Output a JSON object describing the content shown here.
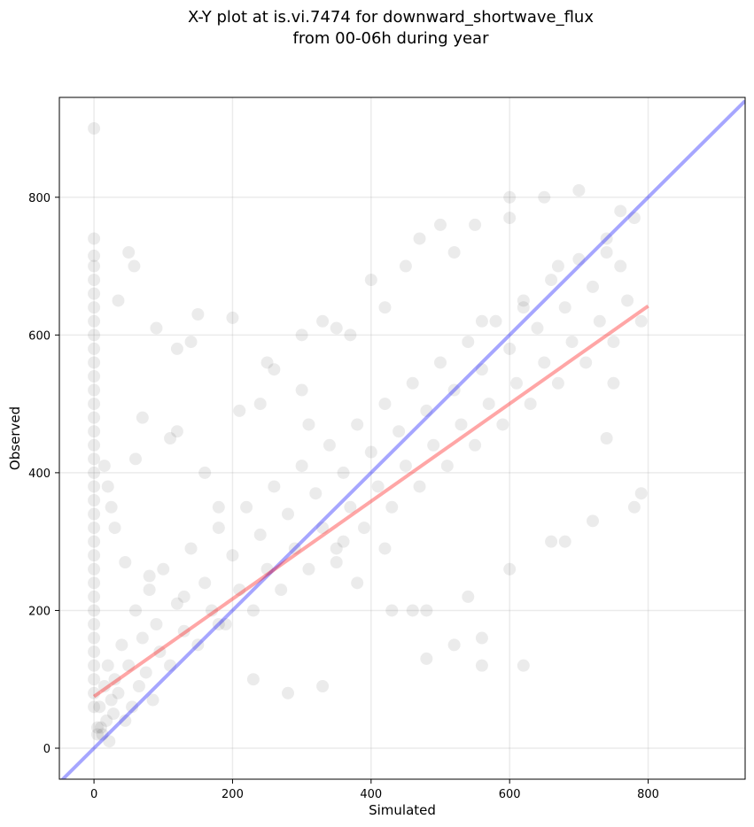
{
  "chart_data": {
    "type": "scatter",
    "title_line1": "X-Y plot at is.vi.7474 for downward_shortwave_flux",
    "title_line2": "from 00-06h during year",
    "xlabel": "Simulated",
    "ylabel": "Observed",
    "xlim": [
      -50,
      940
    ],
    "ylim": [
      -45,
      945
    ],
    "xticks": [
      0,
      200,
      400,
      600,
      800
    ],
    "yticks": [
      0,
      200,
      400,
      600,
      800
    ],
    "grid": true,
    "point_color": "#000000",
    "point_alpha": 0.08,
    "one_to_one_line": {
      "x": [
        -50,
        940
      ],
      "y": [
        -50,
        940
      ],
      "color": "#0000ff",
      "alpha": 0.35
    },
    "fit_line": {
      "x": [
        0,
        800
      ],
      "y": [
        75,
        642
      ],
      "color": "#ff0000",
      "alpha": 0.35
    },
    "series": [
      {
        "points_x": [
          0,
          0,
          0,
          0,
          0,
          0,
          0,
          0,
          0,
          0,
          0,
          0,
          0,
          0,
          0,
          0,
          0,
          0,
          0,
          0,
          0,
          0,
          0,
          0,
          0,
          0,
          0,
          0,
          0,
          0,
          0,
          0,
          0,
          0,
          0,
          0,
          5,
          8,
          12,
          15,
          18,
          20,
          22,
          25,
          28,
          30,
          35,
          40,
          45,
          50,
          55,
          60,
          65,
          70,
          75,
          80,
          85,
          90,
          95,
          100,
          110,
          120,
          130,
          140,
          150,
          160,
          170,
          180,
          190,
          200,
          210,
          220,
          230,
          240,
          250,
          260,
          270,
          280,
          290,
          300,
          310,
          320,
          330,
          340,
          350,
          360,
          370,
          380,
          390,
          400,
          410,
          420,
          430,
          440,
          450,
          460,
          470,
          480,
          490,
          500,
          510,
          520,
          530,
          540,
          550,
          560,
          570,
          580,
          590,
          600,
          610,
          620,
          630,
          640,
          650,
          660,
          670,
          680,
          690,
          700,
          710,
          720,
          730,
          740,
          750,
          760,
          770,
          780,
          790,
          58,
          90,
          120,
          150,
          200,
          250,
          300,
          350,
          400,
          450,
          500,
          550,
          600,
          650,
          700,
          60,
          120,
          180,
          240,
          300,
          360,
          420,
          480,
          540,
          600,
          660,
          720,
          780,
          35,
          50,
          70,
          110,
          140,
          160,
          210,
          260,
          310,
          330,
          370,
          420,
          470,
          520,
          560,
          620,
          670,
          740,
          750,
          790,
          350,
          460,
          560,
          620,
          680,
          740,
          760,
          600,
          560,
          520,
          480,
          430,
          380,
          330,
          280,
          230,
          180,
          130,
          80,
          45,
          30,
          25,
          20,
          15,
          10,
          5
        ],
        "points_y": [
          900,
          740,
          715,
          700,
          680,
          660,
          640,
          620,
          600,
          580,
          560,
          540,
          520,
          500,
          480,
          460,
          440,
          420,
          400,
          380,
          360,
          340,
          320,
          300,
          280,
          260,
          240,
          220,
          200,
          180,
          160,
          140,
          120,
          100,
          80,
          60,
          30,
          60,
          20,
          90,
          40,
          120,
          10,
          70,
          50,
          100,
          80,
          150,
          40,
          120,
          60,
          200,
          90,
          160,
          110,
          230,
          70,
          180,
          140,
          260,
          120,
          210,
          170,
          290,
          150,
          240,
          200,
          320,
          180,
          280,
          230,
          350,
          200,
          310,
          260,
          380,
          230,
          340,
          290,
          410,
          260,
          370,
          320,
          440,
          290,
          400,
          350,
          470,
          320,
          430,
          380,
          500,
          350,
          460,
          410,
          530,
          380,
          490,
          440,
          560,
          410,
          520,
          470,
          590,
          440,
          550,
          500,
          620,
          470,
          580,
          530,
          650,
          500,
          610,
          560,
          680,
          530,
          640,
          590,
          710,
          560,
          670,
          620,
          740,
          590,
          700,
          650,
          770,
          620,
          700,
          610,
          580,
          630,
          625,
          560,
          600,
          610,
          680,
          700,
          760,
          760,
          770,
          800,
          810,
          420,
          460,
          350,
          500,
          520,
          300,
          290,
          200,
          220,
          260,
          300,
          330,
          350,
          650,
          720,
          480,
          450,
          590,
          400,
          490,
          550,
          470,
          620,
          600,
          640,
          740,
          720,
          620,
          640,
          700,
          720,
          530,
          370,
          270,
          200,
          160,
          120,
          300,
          450,
          780,
          800,
          120,
          150,
          130,
          200,
          240,
          90,
          80,
          100,
          180,
          220,
          250,
          270,
          320,
          350,
          380,
          410,
          30,
          20,
          10,
          5
        ],
        "name": ""
      }
    ]
  }
}
